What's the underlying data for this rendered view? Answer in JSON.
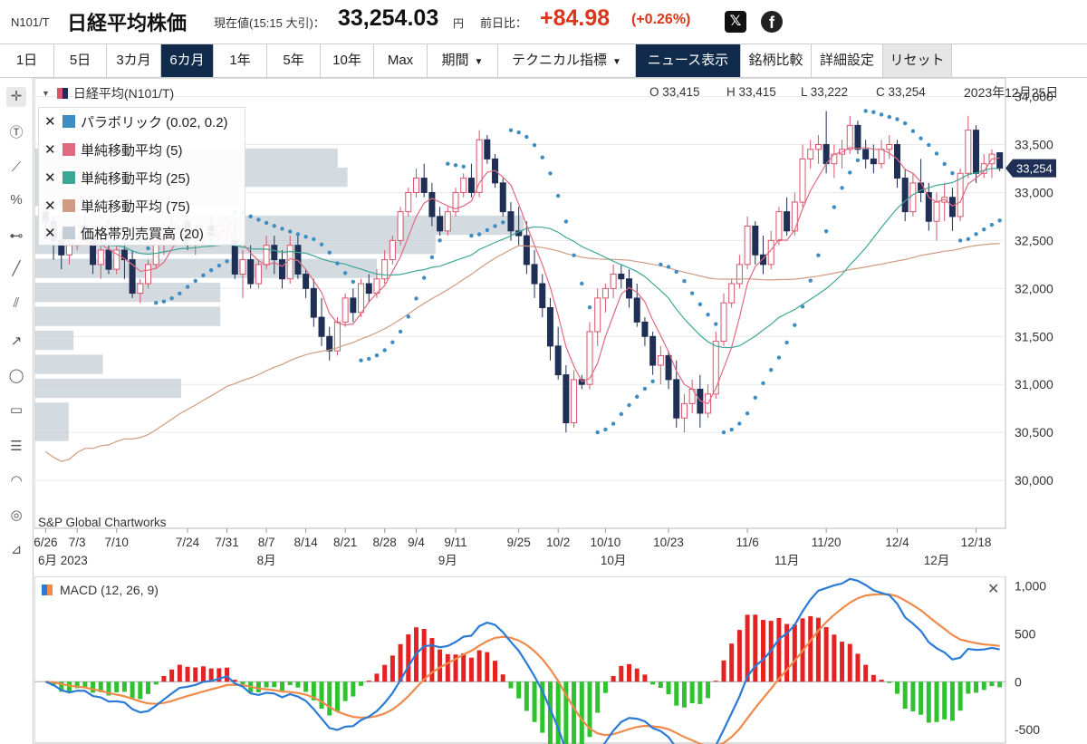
{
  "header": {
    "code": "N101/T",
    "name": "日経平均株価",
    "price_label": "現在値(15:15 大引)：",
    "price": "33,254.03",
    "currency": "円",
    "change_label": "前日比：",
    "change": "+84.98",
    "change_pct": "(+0.26%)",
    "x_icon": "x-logo-icon",
    "facebook_icon": "facebook-icon",
    "up_color": "#d9361a"
  },
  "toolbar": {
    "buttons": [
      "1日",
      "5日",
      "3カ月",
      "6カ月",
      "1年",
      "5年",
      "10年",
      "Max",
      "期間",
      "テクニカル指標",
      "ニュース表示",
      "銘柄比較",
      "詳細設定",
      "リセット"
    ],
    "active": "6カ月"
  },
  "chart_header": {
    "title": "日経平均(N101/T)",
    "open": "O 33,415",
    "high": "H 33,415",
    "low": "L 33,222",
    "close": "C 33,254",
    "date": "2023年12月25日",
    "last_price_tag": "33,254"
  },
  "legend": [
    {
      "label": "パラボリック (0.02, 0.2)",
      "color": "#3d8cc2"
    },
    {
      "label": "単純移動平均 (5)",
      "color": "#e06a80"
    },
    {
      "label": "単純移動平均 (25)",
      "color": "#3ea796"
    },
    {
      "label": "単純移動平均 (75)",
      "color": "#cf9b82"
    },
    {
      "label": "価格帯別売買高 (20)",
      "color": "#c4cdd6"
    }
  ],
  "credit": "S&P Global Chartworks",
  "macd": {
    "title": "MACD (12, 26, 9)",
    "macd_color": "#2b7bd6",
    "signal_color": "#f08a4b",
    "hist_pos_color": "#e52222",
    "hist_neg_color": "#2ec32e"
  },
  "chart_data": {
    "type": "candlestick",
    "y_axis": {
      "ticks": [
        "34,000",
        "33,500",
        "33,000",
        "32,500",
        "32,000",
        "31,500",
        "31,000",
        "30,500",
        "30,000"
      ],
      "ylim": [
        29500,
        34100
      ]
    },
    "x_axis": {
      "day_labels": [
        "6/26",
        "7/3",
        "7/10",
        "7/24",
        "7/31",
        "8/7",
        "8/14",
        "8/21",
        "8/28",
        "9/4",
        "9/11",
        "9/25",
        "10/2",
        "10/10",
        "10/23",
        "11/6",
        "11/20",
        "12/4",
        "12/18"
      ],
      "month_labels": [
        "6月 2023",
        "8月",
        "9月",
        "10月",
        "11月",
        "12月"
      ]
    },
    "candles": [
      [
        32800,
        32900,
        32550,
        32700
      ],
      [
        32700,
        32750,
        32300,
        32500
      ],
      [
        32500,
        32600,
        32200,
        32350
      ],
      [
        32350,
        32550,
        32250,
        32450
      ],
      [
        32450,
        32700,
        32400,
        32650
      ],
      [
        32650,
        32800,
        32500,
        32550
      ],
      [
        32550,
        32650,
        32150,
        32250
      ],
      [
        32250,
        32500,
        32100,
        32400
      ],
      [
        32400,
        32500,
        32150,
        32200
      ],
      [
        32200,
        32450,
        32150,
        32400
      ],
      [
        32400,
        32500,
        32100,
        32300
      ],
      [
        32300,
        32400,
        31900,
        31950
      ],
      [
        31950,
        32100,
        31850,
        32050
      ],
      [
        32050,
        32300,
        32000,
        32250
      ],
      [
        32250,
        32550,
        32200,
        32500
      ],
      [
        32500,
        32700,
        32350,
        32600
      ],
      [
        32600,
        32750,
        32450,
        32650
      ],
      [
        32650,
        32800,
        32550,
        32700
      ],
      [
        32700,
        32750,
        32400,
        32500
      ],
      [
        32500,
        32650,
        32350,
        32550
      ],
      [
        32550,
        32700,
        32450,
        32650
      ],
      [
        32650,
        32750,
        32500,
        32550
      ],
      [
        32550,
        32700,
        32500,
        32650
      ],
      [
        32650,
        32750,
        32500,
        32700
      ],
      [
        32500,
        32700,
        32100,
        32150
      ],
      [
        32150,
        32400,
        31900,
        32300
      ],
      [
        32300,
        32450,
        32000,
        32050
      ],
      [
        32050,
        32300,
        32000,
        32250
      ],
      [
        32250,
        32550,
        32200,
        32450
      ],
      [
        32450,
        32550,
        32150,
        32300
      ],
      [
        32300,
        32400,
        32000,
        32100
      ],
      [
        32100,
        32550,
        32050,
        32450
      ],
      [
        32450,
        32550,
        32100,
        32150
      ],
      [
        32150,
        32200,
        31900,
        32000
      ],
      [
        32000,
        32100,
        31600,
        31700
      ],
      [
        31700,
        31900,
        31400,
        31500
      ],
      [
        31500,
        31600,
        31250,
        31350
      ],
      [
        31350,
        31700,
        31300,
        31650
      ],
      [
        31650,
        31950,
        31600,
        31900
      ],
      [
        31900,
        32000,
        31650,
        31750
      ],
      [
        31750,
        32100,
        31700,
        32050
      ],
      [
        32050,
        32150,
        31850,
        31950
      ],
      [
        31950,
        32200,
        31900,
        32100
      ],
      [
        32100,
        32400,
        32050,
        32300
      ],
      [
        32300,
        32550,
        32250,
        32500
      ],
      [
        32500,
        32850,
        32450,
        32800
      ],
      [
        32800,
        33050,
        32750,
        33000
      ],
      [
        33000,
        33250,
        32950,
        33150
      ],
      [
        33150,
        33300,
        32950,
        33000
      ],
      [
        33000,
        33100,
        32650,
        32750
      ],
      [
        32750,
        32850,
        32550,
        32600
      ],
      [
        32600,
        32850,
        32550,
        32800
      ],
      [
        32800,
        33050,
        32750,
        33000
      ],
      [
        33000,
        33200,
        32950,
        33150
      ],
      [
        33150,
        33300,
        32950,
        33000
      ],
      [
        33000,
        33650,
        32950,
        33550
      ],
      [
        33550,
        33600,
        33300,
        33350
      ],
      [
        33350,
        33400,
        33050,
        33100
      ],
      [
        33100,
        33150,
        32750,
        32800
      ],
      [
        32800,
        32900,
        32500,
        32600
      ],
      [
        32600,
        32850,
        32450,
        32550
      ],
      [
        32550,
        32700,
        32150,
        32250
      ],
      [
        32250,
        32400,
        31900,
        32050
      ],
      [
        32050,
        32150,
        31700,
        31800
      ],
      [
        31800,
        31900,
        31250,
        31400
      ],
      [
        31400,
        31600,
        31050,
        31100
      ],
      [
        31100,
        31200,
        30500,
        30600
      ],
      [
        30600,
        31150,
        30550,
        31050
      ],
      [
        31050,
        31100,
        30950,
        31000
      ],
      [
        31000,
        31650,
        30950,
        31550
      ],
      [
        31550,
        32000,
        31400,
        31900
      ],
      [
        31900,
        32050,
        31750,
        32000
      ],
      [
        32000,
        32250,
        31900,
        32150
      ],
      [
        32150,
        32250,
        32000,
        32100
      ],
      [
        32100,
        32200,
        31800,
        31900
      ],
      [
        31900,
        32050,
        31600,
        31650
      ],
      [
        31650,
        31700,
        31400,
        31500
      ],
      [
        31500,
        31550,
        31100,
        31200
      ],
      [
        31200,
        31400,
        31000,
        31300
      ],
      [
        31300,
        31350,
        30950,
        31050
      ],
      [
        31050,
        31250,
        30550,
        30650
      ],
      [
        30650,
        30900,
        30500,
        30800
      ],
      [
        30800,
        31050,
        30700,
        30950
      ],
      [
        30950,
        31100,
        30550,
        30700
      ],
      [
        30700,
        31000,
        30650,
        30900
      ],
      [
        30900,
        31550,
        30850,
        31450
      ],
      [
        31450,
        31950,
        31400,
        31850
      ],
      [
        31850,
        32100,
        31800,
        32050
      ],
      [
        32050,
        32350,
        32000,
        32250
      ],
      [
        32250,
        32750,
        32200,
        32650
      ],
      [
        32650,
        32700,
        32250,
        32350
      ],
      [
        32350,
        32550,
        32150,
        32250
      ],
      [
        32250,
        32600,
        32200,
        32500
      ],
      [
        32500,
        32850,
        32450,
        32800
      ],
      [
        32800,
        32950,
        32550,
        32600
      ],
      [
        32600,
        33000,
        32550,
        32900
      ],
      [
        32900,
        33500,
        32850,
        33350
      ],
      [
        33350,
        33550,
        33250,
        33450
      ],
      [
        33450,
        33600,
        33300,
        33500
      ],
      [
        33500,
        33850,
        33200,
        33300
      ],
      [
        33300,
        33500,
        33150,
        33400
      ],
      [
        33400,
        33550,
        33250,
        33450
      ],
      [
        33450,
        33800,
        33400,
        33700
      ],
      [
        33700,
        33750,
        33400,
        33450
      ],
      [
        33450,
        33550,
        33250,
        33350
      ],
      [
        33350,
        33500,
        33200,
        33300
      ],
      [
        33300,
        33550,
        33250,
        33450
      ],
      [
        33450,
        33600,
        33350,
        33500
      ],
      [
        33500,
        33550,
        33050,
        33150
      ],
      [
        33150,
        33250,
        32700,
        32800
      ],
      [
        32800,
        33200,
        32750,
        33100
      ],
      [
        33100,
        33350,
        32900,
        33000
      ],
      [
        33000,
        33100,
        32600,
        32700
      ],
      [
        32700,
        33000,
        32500,
        32900
      ],
      [
        32900,
        33100,
        32700,
        32950
      ],
      [
        32950,
        33050,
        32600,
        32750
      ],
      [
        32750,
        33250,
        32700,
        33200
      ],
      [
        33200,
        33800,
        33150,
        33650
      ],
      [
        33650,
        33700,
        33100,
        33200
      ],
      [
        33200,
        33400,
        33150,
        33300
      ],
      [
        33300,
        33450,
        33150,
        33400
      ],
      [
        33415,
        33415,
        33222,
        33254
      ]
    ],
    "sma25": [],
    "volume_by_price": [
      {
        "price": 33350,
        "volume": 0.62
      },
      {
        "price": 33150,
        "volume": 0.64
      },
      {
        "price": 32950,
        "volume": 0.42
      },
      {
        "price": 32650,
        "volume": 1.0
      },
      {
        "price": 32450,
        "volume": 0.82
      },
      {
        "price": 32200,
        "volume": 0.7
      },
      {
        "price": 31950,
        "volume": 0.38
      },
      {
        "price": 31700,
        "volume": 0.38
      },
      {
        "price": 31450,
        "volume": 0.08
      },
      {
        "price": 31200,
        "volume": 0.14
      },
      {
        "price": 30950,
        "volume": 0.3
      },
      {
        "price": 30700,
        "volume": 0.07
      },
      {
        "price": 30500,
        "volume": 0.07
      }
    ],
    "macd_axis": {
      "ticks": [
        "1,000",
        "500",
        "0",
        "-500"
      ],
      "ylim": [
        -650,
        1100
      ]
    }
  }
}
